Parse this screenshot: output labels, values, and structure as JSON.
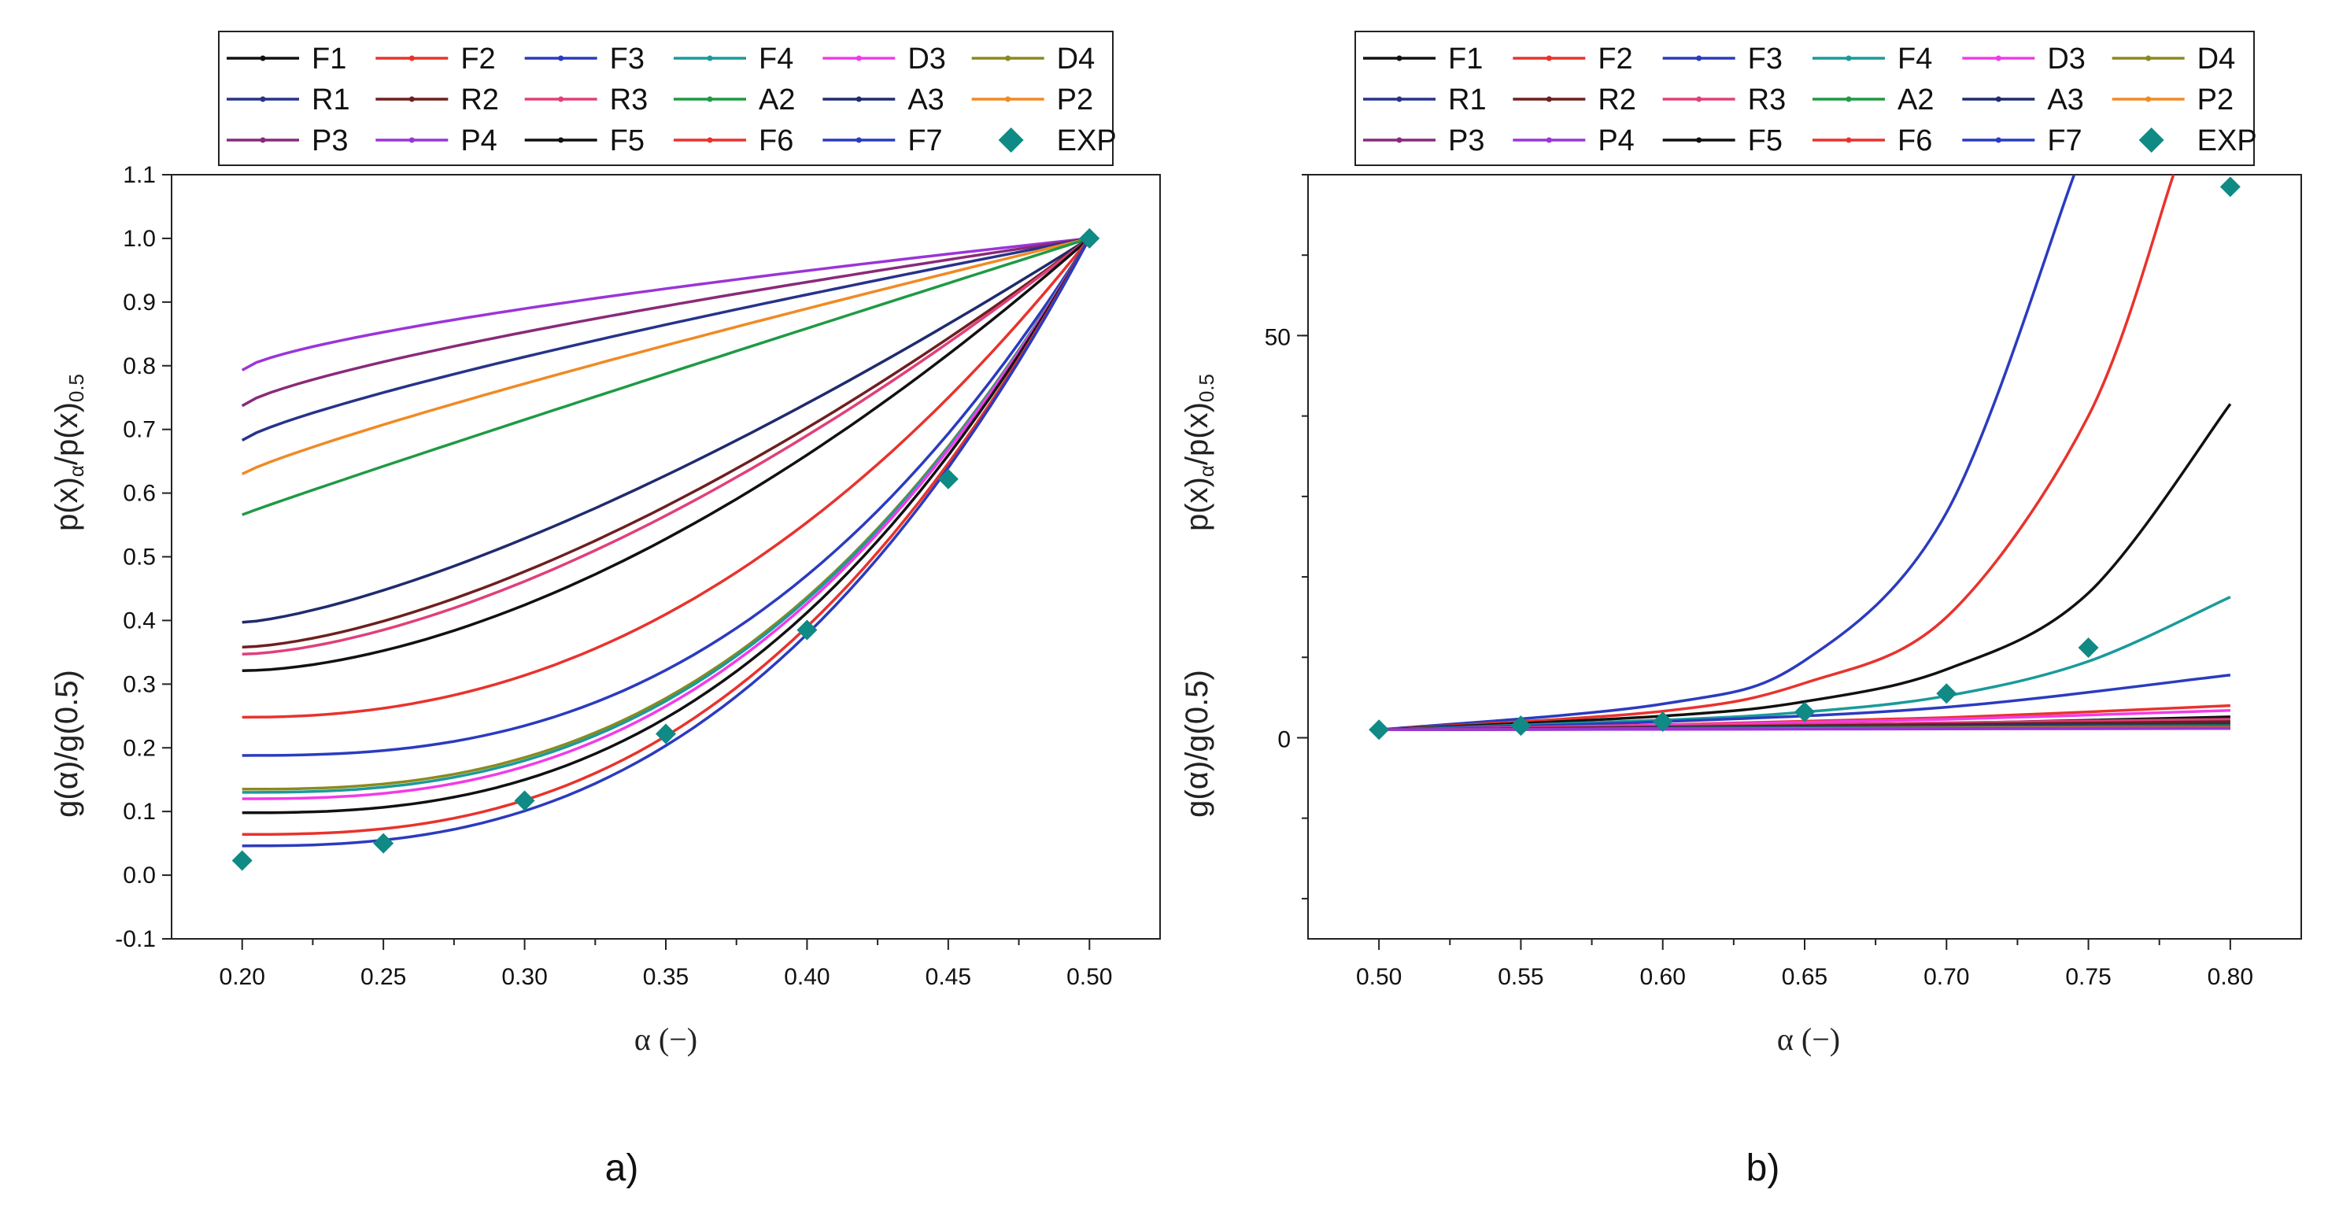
{
  "legend": [
    "F1",
    "F2",
    "F3",
    "F4",
    "D3",
    "D4",
    "R1",
    "R2",
    "R3",
    "A2",
    "A3",
    "P2",
    "P3",
    "P4",
    "F5",
    "F6",
    "F7",
    "EXP"
  ],
  "colors": {
    "F1": "#111111",
    "F2": "#e8332d",
    "F3": "#2b3bbf",
    "F4": "#1a9a9a",
    "D3": "#f23be8",
    "D4": "#8a8a1f",
    "R1": "#27338a",
    "R2": "#6e1f1f",
    "R3": "#e0407a",
    "A2": "#1f9a45",
    "A3": "#1f2b6e",
    "P2": "#f08a25",
    "P3": "#8a2a78",
    "P4": "#9a35d8",
    "F5": "#111111",
    "F6": "#e8332d",
    "F7": "#2b3bbf",
    "EXP": "#0f8a85"
  },
  "chart_data": [
    {
      "type": "line",
      "panel_label": "a)",
      "ylabel_top": "p(x)α/p(x)0.5",
      "ylabel_bottom": "g(α)/g(0.5)",
      "xlabel": "α (−)",
      "xlim": [
        0.175,
        0.525
      ],
      "ylim": [
        -0.1,
        1.1
      ],
      "xticks": [
        "0.20",
        "0.25",
        "0.30",
        "0.35",
        "0.40",
        "0.45",
        "0.50"
      ],
      "yticks": [
        "-0.1",
        "0.0",
        "0.1",
        "0.2",
        "0.3",
        "0.4",
        "0.5",
        "0.6",
        "0.7",
        "0.8",
        "0.9",
        "1.0",
        "1.1"
      ],
      "series": [
        {
          "name": "P4",
          "x": [
            0.2,
            0.5
          ],
          "values": [
            0.793,
            1.0
          ]
        },
        {
          "name": "P3",
          "x": [
            0.2,
            0.5
          ],
          "values": [
            0.737,
            1.0
          ]
        },
        {
          "name": "R1",
          "x": [
            0.2,
            0.5
          ],
          "values": [
            0.683,
            1.0
          ]
        },
        {
          "name": "P2",
          "x": [
            0.2,
            0.5
          ],
          "values": [
            0.63,
            1.0
          ]
        },
        {
          "name": "A2",
          "x": [
            0.2,
            0.5
          ],
          "values": [
            0.566,
            1.0
          ]
        },
        {
          "name": "A3",
          "x": [
            0.2,
            0.5
          ],
          "values": [
            0.397,
            1.0
          ]
        },
        {
          "name": "R2",
          "x": [
            0.2,
            0.5
          ],
          "values": [
            0.358,
            1.0
          ]
        },
        {
          "name": "R3",
          "x": [
            0.2,
            0.5
          ],
          "values": [
            0.347,
            1.0
          ]
        },
        {
          "name": "F1",
          "x": [
            0.2,
            0.5
          ],
          "values": [
            0.321,
            1.0
          ]
        },
        {
          "name": "F2",
          "x": [
            0.2,
            0.5
          ],
          "values": [
            0.248,
            1.0
          ]
        },
        {
          "name": "F3",
          "x": [
            0.2,
            0.5
          ],
          "values": [
            0.188,
            1.0
          ]
        },
        {
          "name": "D4",
          "x": [
            0.2,
            0.5
          ],
          "values": [
            0.135,
            1.0
          ]
        },
        {
          "name": "F4",
          "x": [
            0.2,
            0.5
          ],
          "values": [
            0.13,
            1.0
          ]
        },
        {
          "name": "D3",
          "x": [
            0.2,
            0.5
          ],
          "values": [
            0.12,
            1.0
          ]
        },
        {
          "name": "F5",
          "x": [
            0.2,
            0.5
          ],
          "values": [
            0.098,
            1.0
          ]
        },
        {
          "name": "F6",
          "x": [
            0.2,
            0.5
          ],
          "values": [
            0.064,
            1.0
          ]
        },
        {
          "name": "F7",
          "x": [
            0.2,
            0.5
          ],
          "values": [
            0.046,
            1.0
          ]
        }
      ],
      "exp": {
        "x": [
          0.2,
          0.25,
          0.3,
          0.35,
          0.4,
          0.45,
          0.5
        ],
        "values": [
          0.023,
          0.05,
          0.117,
          0.222,
          0.385,
          0.622,
          1.0
        ]
      }
    },
    {
      "type": "line",
      "panel_label": "b)",
      "ylabel_top": "p(x)α/p(x)0.5",
      "ylabel_bottom": "g(α)/g(0.5)",
      "xlabel": "α (−)",
      "xlim": [
        0.475,
        0.825
      ],
      "ylim": [
        -25,
        70
      ],
      "xticks": [
        "0.50",
        "0.55",
        "0.60",
        "0.65",
        "0.70",
        "0.75",
        "0.80"
      ],
      "yticks_major": [
        "0",
        "50"
      ],
      "series": [
        {
          "name": "F7",
          "x": [
            0.5,
            0.6,
            0.65,
            0.7,
            0.745
          ],
          "values": [
            1,
            4.2,
            9.6,
            28,
            70
          ]
        },
        {
          "name": "F6",
          "x": [
            0.5,
            0.6,
            0.65,
            0.7,
            0.75,
            0.78
          ],
          "values": [
            1,
            3.3,
            6.8,
            15,
            40,
            70
          ]
        },
        {
          "name": "F5",
          "x": [
            0.5,
            0.6,
            0.65,
            0.7,
            0.75,
            0.8
          ],
          "values": [
            1,
            2.7,
            4.5,
            8.5,
            18,
            41.5
          ]
        },
        {
          "name": "F4",
          "x": [
            0.5,
            0.6,
            0.65,
            0.7,
            0.75,
            0.8
          ],
          "values": [
            1,
            2.2,
            3.2,
            5.2,
            9.5,
            17.5
          ]
        },
        {
          "name": "F3",
          "x": [
            0.5,
            0.6,
            0.7,
            0.8
          ],
          "values": [
            1,
            2.0,
            3.8,
            7.8
          ]
        },
        {
          "name": "F2",
          "x": [
            0.5,
            0.6,
            0.7,
            0.8
          ],
          "values": [
            1,
            1.6,
            2.5,
            4.0
          ]
        },
        {
          "name": "D3",
          "x": [
            0.5,
            0.6,
            0.7,
            0.8
          ],
          "values": [
            1,
            1.55,
            2.3,
            3.4
          ]
        },
        {
          "name": "F1",
          "x": [
            0.5,
            0.6,
            0.7,
            0.8
          ],
          "values": [
            1,
            1.35,
            1.8,
            2.6
          ]
        },
        {
          "name": "R3",
          "x": [
            0.5,
            0.8
          ],
          "values": [
            1,
            2.3
          ]
        },
        {
          "name": "R2",
          "x": [
            0.5,
            0.8
          ],
          "values": [
            1,
            2.0
          ]
        },
        {
          "name": "A3",
          "x": [
            0.5,
            0.8
          ],
          "values": [
            1,
            1.7
          ]
        },
        {
          "name": "A2",
          "x": [
            0.5,
            0.8
          ],
          "values": [
            1,
            1.5
          ]
        },
        {
          "name": "R1",
          "x": [
            0.5,
            0.8
          ],
          "values": [
            1,
            1.4
          ]
        },
        {
          "name": "P2",
          "x": [
            0.5,
            0.8
          ],
          "values": [
            1,
            1.3
          ]
        },
        {
          "name": "P3",
          "x": [
            0.5,
            0.8
          ],
          "values": [
            1,
            1.2
          ]
        },
        {
          "name": "P4",
          "x": [
            0.5,
            0.8
          ],
          "values": [
            1,
            1.15
          ]
        }
      ],
      "exp": {
        "x": [
          0.5,
          0.55,
          0.6,
          0.65,
          0.7,
          0.75,
          0.8
        ],
        "values": [
          1.0,
          1.5,
          2.0,
          3.2,
          5.5,
          11.2,
          68.5
        ]
      }
    }
  ]
}
